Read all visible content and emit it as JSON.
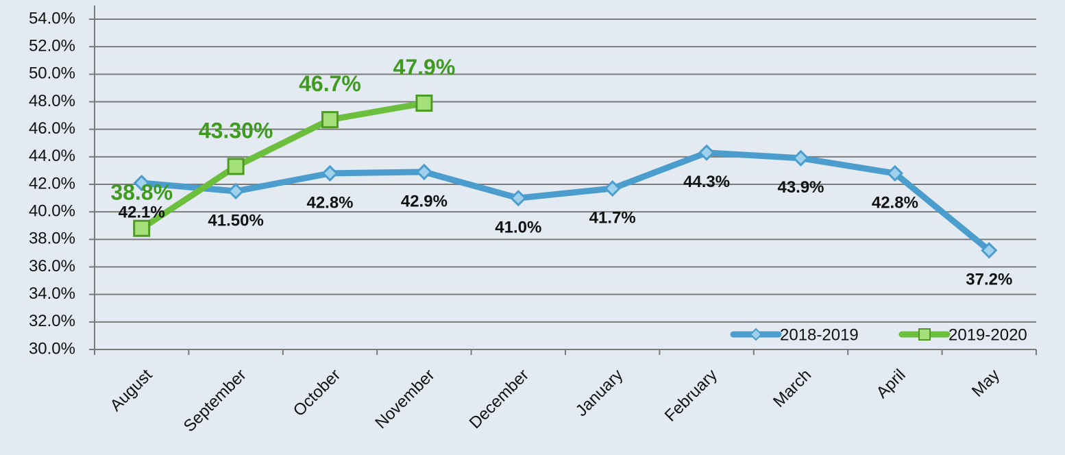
{
  "chart_data": {
    "type": "line",
    "categories": [
      "August",
      "September",
      "October",
      "November",
      "December",
      "January",
      "February",
      "March",
      "April",
      "May"
    ],
    "series": [
      {
        "name": "2018-2019",
        "color": "#4a9dcc",
        "values": [
          42.1,
          41.5,
          42.8,
          42.9,
          41.0,
          41.7,
          44.3,
          43.9,
          42.8,
          37.2
        ],
        "value_labels": [
          "42.1%",
          "41.50%",
          "42.8%",
          "42.9%",
          "41.0%",
          "41.7%",
          "44.3%",
          "43.9%",
          "42.8%",
          "37.2%"
        ]
      },
      {
        "name": "2019-2020",
        "color": "#6cbf3c",
        "values": [
          38.8,
          43.3,
          46.7,
          47.9,
          null,
          null,
          null,
          null,
          null,
          null
        ],
        "value_labels": [
          "38.8%",
          "43.30%",
          "46.7%",
          "47.9%",
          null,
          null,
          null,
          null,
          null,
          null
        ]
      }
    ],
    "ylim": [
      30,
      54
    ],
    "yticks": [
      {
        "value": 30,
        "label": "30.0%"
      },
      {
        "value": 32,
        "label": "32.0%"
      },
      {
        "value": 34,
        "label": "34.0%"
      },
      {
        "value": 36,
        "label": "36.0%"
      },
      {
        "value": 38,
        "label": "38.0%"
      },
      {
        "value": 40,
        "label": "40.0%"
      },
      {
        "value": 42,
        "label": "42.0%"
      },
      {
        "value": 44,
        "label": "44.0%"
      },
      {
        "value": 46,
        "label": "46.0%"
      },
      {
        "value": 48,
        "label": "48.0%"
      },
      {
        "value": 50,
        "label": "50.0%"
      },
      {
        "value": 52,
        "label": "52.0%"
      },
      {
        "value": 54,
        "label": "54.0%"
      }
    ],
    "grid": true,
    "legend": "lower right"
  }
}
